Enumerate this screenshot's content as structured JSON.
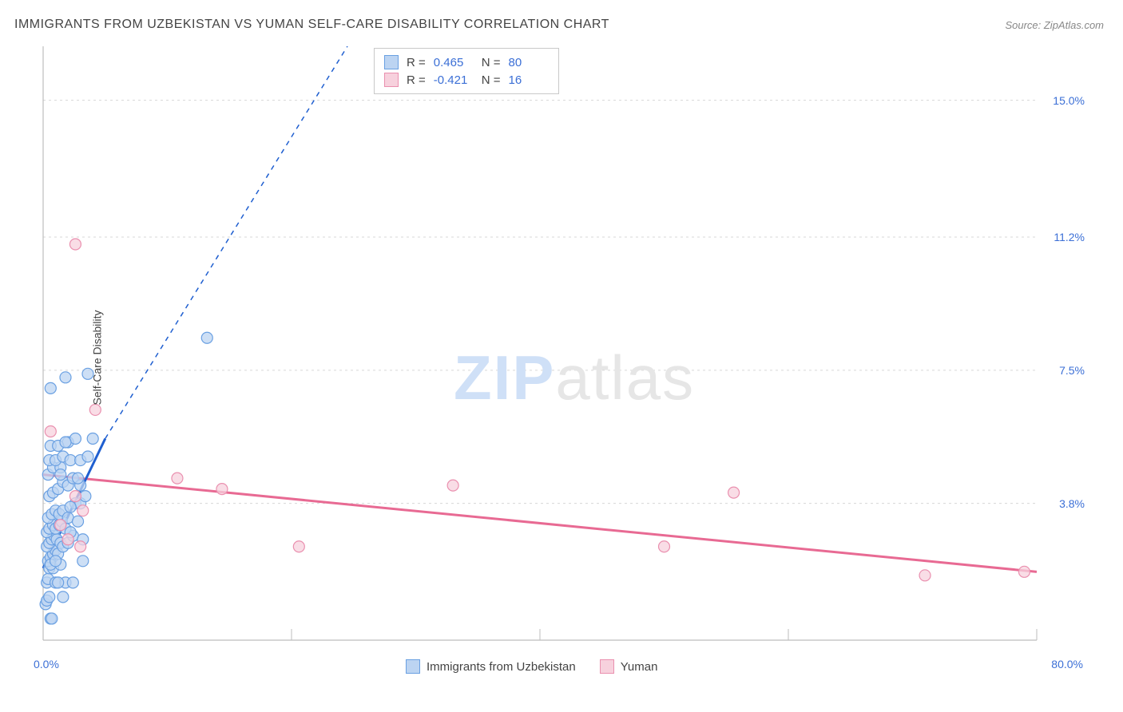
{
  "title": "IMMIGRANTS FROM UZBEKISTAN VS YUMAN SELF-CARE DISABILITY CORRELATION CHART",
  "source": "Source: ZipAtlas.com",
  "ylabel": "Self-Care Disability",
  "watermark": {
    "zip": "ZIP",
    "atlas": "atlas"
  },
  "chart": {
    "type": "scatter",
    "xlim": [
      0,
      80
    ],
    "ylim": [
      0,
      16.5
    ],
    "x_axis_labels": {
      "min": "0.0%",
      "max": "80.0%"
    },
    "y_ticks": [
      {
        "v": 3.8,
        "label": "3.8%"
      },
      {
        "v": 7.5,
        "label": "7.5%"
      },
      {
        "v": 11.2,
        "label": "11.2%"
      },
      {
        "v": 15.0,
        "label": "15.0%"
      }
    ],
    "x_tick_positions": [
      0,
      20,
      40,
      60,
      80
    ],
    "grid_color": "#d7d7d7",
    "axis_color": "#bdbdbd",
    "background_color": "#ffffff",
    "marker_radius": 7,
    "marker_stroke_width": 1.2,
    "series": [
      {
        "id": "uzbekistan",
        "label": "Immigrants from Uzbekistan",
        "fill": "#bcd4f2",
        "stroke": "#6aa0e2",
        "trend_color": "#1f5fd0",
        "trend_solid": {
          "x1": 0,
          "y1": 2.0,
          "x2": 5.0,
          "y2": 5.6
        },
        "trend_dash": {
          "x1": 5.0,
          "y1": 5.6,
          "x2": 24.5,
          "y2": 16.5
        },
        "R": "0.465",
        "N": "80",
        "points": [
          [
            0.2,
            1.0
          ],
          [
            0.3,
            1.1
          ],
          [
            0.5,
            1.2
          ],
          [
            0.6,
            0.6
          ],
          [
            0.7,
            0.6
          ],
          [
            0.3,
            1.6
          ],
          [
            0.4,
            1.7
          ],
          [
            0.5,
            2.0
          ],
          [
            0.8,
            2.0
          ],
          [
            1.0,
            1.6
          ],
          [
            0.4,
            2.2
          ],
          [
            0.6,
            2.3
          ],
          [
            0.8,
            2.4
          ],
          [
            1.0,
            2.5
          ],
          [
            1.2,
            2.4
          ],
          [
            0.3,
            2.6
          ],
          [
            0.5,
            2.7
          ],
          [
            0.7,
            2.8
          ],
          [
            0.9,
            2.9
          ],
          [
            1.1,
            2.8
          ],
          [
            1.4,
            2.7
          ],
          [
            1.6,
            2.6
          ],
          [
            2.0,
            2.7
          ],
          [
            2.4,
            2.9
          ],
          [
            3.2,
            2.8
          ],
          [
            0.3,
            3.0
          ],
          [
            0.5,
            3.1
          ],
          [
            0.8,
            3.2
          ],
          [
            1.0,
            3.1
          ],
          [
            1.3,
            3.2
          ],
          [
            1.5,
            3.3
          ],
          [
            1.8,
            3.1
          ],
          [
            2.2,
            3.0
          ],
          [
            0.4,
            3.4
          ],
          [
            0.7,
            3.5
          ],
          [
            1.0,
            3.6
          ],
          [
            1.3,
            3.5
          ],
          [
            1.6,
            3.6
          ],
          [
            2.0,
            3.4
          ],
          [
            2.6,
            3.8
          ],
          [
            3.0,
            3.8
          ],
          [
            0.5,
            4.0
          ],
          [
            0.8,
            4.1
          ],
          [
            1.2,
            4.2
          ],
          [
            1.6,
            4.4
          ],
          [
            2.0,
            4.3
          ],
          [
            2.4,
            4.5
          ],
          [
            0.4,
            4.6
          ],
          [
            0.8,
            4.8
          ],
          [
            1.4,
            4.8
          ],
          [
            0.5,
            5.0
          ],
          [
            1.0,
            5.0
          ],
          [
            1.6,
            5.1
          ],
          [
            2.2,
            5.0
          ],
          [
            3.0,
            5.0
          ],
          [
            3.0,
            4.3
          ],
          [
            3.6,
            5.1
          ],
          [
            4.0,
            5.6
          ],
          [
            2.0,
            5.5
          ],
          [
            2.6,
            5.6
          ],
          [
            0.6,
            5.4
          ],
          [
            1.2,
            5.4
          ],
          [
            1.8,
            5.5
          ],
          [
            0.6,
            2.1
          ],
          [
            1.4,
            2.1
          ],
          [
            1.0,
            2.2
          ],
          [
            1.8,
            1.6
          ],
          [
            1.2,
            1.6
          ],
          [
            1.6,
            1.2
          ],
          [
            2.4,
            1.6
          ],
          [
            1.8,
            7.3
          ],
          [
            3.6,
            7.4
          ],
          [
            0.6,
            7.0
          ],
          [
            13.2,
            8.4
          ],
          [
            2.2,
            3.7
          ],
          [
            2.8,
            3.3
          ],
          [
            1.4,
            4.6
          ],
          [
            2.8,
            4.5
          ],
          [
            3.4,
            4.0
          ],
          [
            3.2,
            2.2
          ]
        ]
      },
      {
        "id": "yuman",
        "label": "Yuman",
        "fill": "#f7d1dd",
        "stroke": "#ea90af",
        "trend_color": "#e86a93",
        "trend_solid": {
          "x1": 0,
          "y1": 4.6,
          "x2": 80,
          "y2": 1.9
        },
        "R": "-0.421",
        "N": "16",
        "points": [
          [
            0.6,
            5.8
          ],
          [
            1.4,
            3.2
          ],
          [
            2.0,
            2.8
          ],
          [
            2.6,
            4.0
          ],
          [
            3.0,
            2.6
          ],
          [
            3.2,
            3.6
          ],
          [
            2.6,
            11.0
          ],
          [
            4.2,
            6.4
          ],
          [
            10.8,
            4.5
          ],
          [
            14.4,
            4.2
          ],
          [
            20.6,
            2.6
          ],
          [
            33.0,
            4.3
          ],
          [
            50.0,
            2.6
          ],
          [
            55.6,
            4.1
          ],
          [
            71.0,
            1.8
          ],
          [
            79.0,
            1.9
          ]
        ]
      }
    ]
  },
  "legend_top": {
    "r_prefix": "R = ",
    "n_prefix": "N = "
  },
  "colors": {
    "title": "#444444",
    "source": "#888888",
    "tick_label": "#3b6fd6"
  },
  "typography": {
    "title_fontsize": 16,
    "label_fontsize": 14,
    "legend_fontsize": 15
  }
}
